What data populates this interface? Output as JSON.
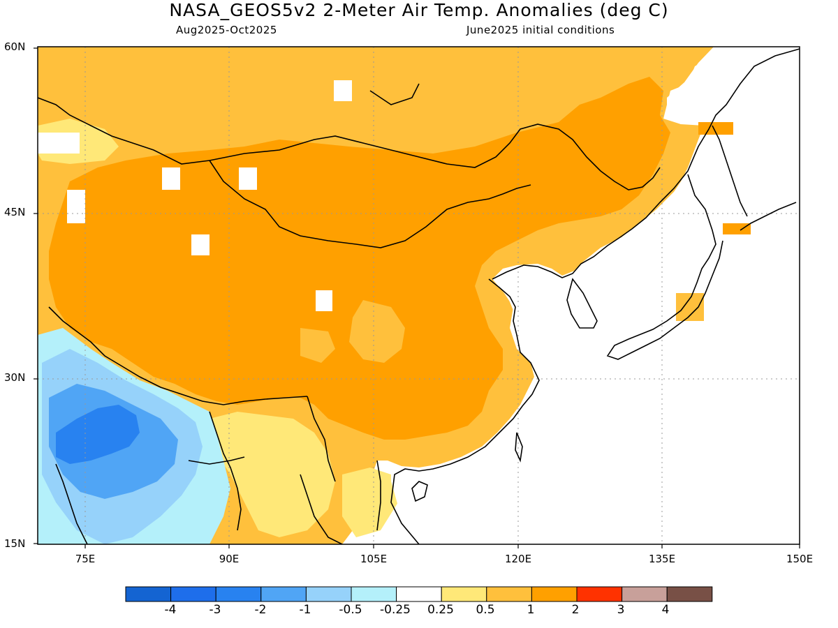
{
  "header": {
    "title": "NASA_GEOS5v2 2-Meter Air Temp. Anomalies (deg C)",
    "period": "Aug2025-Oct2025",
    "init": "June2025 initial conditions"
  },
  "axes": {
    "lat_labels": [
      "60N",
      "45N",
      "30N",
      "15N"
    ],
    "lon_labels": [
      "75E",
      "90E",
      "105E",
      "120E",
      "135E",
      "150E"
    ]
  },
  "colorbar": {
    "labels": [
      "-4",
      "-3",
      "-2",
      "-1",
      "-0.5",
      "-0.25",
      "0.25",
      "0.5",
      "1",
      "2",
      "3",
      "4"
    ],
    "colors": [
      "#1464d2",
      "#1e6eeb",
      "#2882f0",
      "#50a5f5",
      "#96d2fa",
      "#b4f0fa",
      "#ffffff",
      "#ffe878",
      "#ffc03c",
      "#ffa000",
      "#ff3200",
      "#c8a09a",
      "#785046"
    ]
  },
  "palette": {
    "neg_strong": "#2882f0",
    "neg_mid": "#50a5f5",
    "neg_light": "#96d2fa",
    "neg_faint": "#b4f0fa",
    "pos_faint": "#ffe878",
    "pos_light": "#ffc03c",
    "pos_mid": "#ffa000",
    "coast": "#000000",
    "grid": "#999999"
  }
}
